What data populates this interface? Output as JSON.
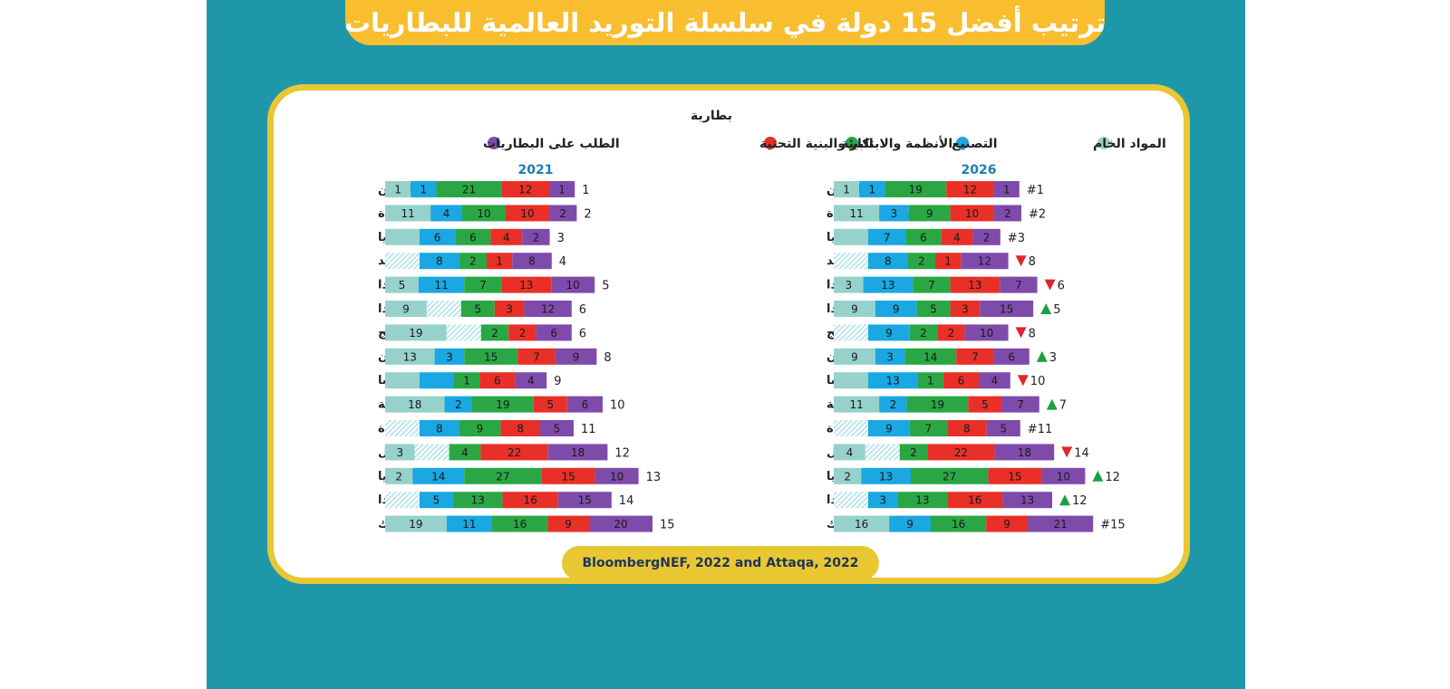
{
  "title": "ترتيب أفضل 15 دولة في سلسلة التوريد العالمية للبطاريات",
  "source": "BloombergNEF, 2022 and Attaqa, 2022",
  "colors": {
    "raw_materials": "#96d2cb",
    "manufacturing": "#1aa7e2",
    "environment": "#2aa744",
    "regulation": "#e83028",
    "demand": "#7e4bab",
    "hatch": "#bfe5ee",
    "up_arrow": "#1e9e43",
    "down_arrow": "#e0262a",
    "year_label": "#1a7fb1",
    "board": "#1e98a8",
    "banner": "#f8be2f",
    "frame": "#e9c733"
  },
  "chart_data": {
    "type": "bar",
    "stacked": true,
    "orientation": "horizontal",
    "legend_title": "بطارية",
    "legend_position": "top",
    "series": [
      {
        "name": "المواد الخام",
        "color_key": "raw_materials"
      },
      {
        "name": "التصنيع",
        "color_key": "manufacturing"
      },
      {
        "name": "البيئة",
        "color_key": "environment"
      },
      {
        "name": "الأنظمة والابتكار والبنية التحتية",
        "color_key": "regulation"
      },
      {
        "name": "الطلب على البطاريات",
        "color_key": "demand"
      }
    ],
    "charts": [
      {
        "year": "2026",
        "rows": [
          {
            "country": "الصين",
            "rank": "#1",
            "change": "",
            "segments": [
              {
                "s": 0,
                "v": "1"
              },
              {
                "s": 1,
                "v": "1"
              },
              {
                "s": 2,
                "v": "19"
              },
              {
                "s": 3,
                "v": "12"
              },
              {
                "s": 4,
                "v": "1"
              }
            ]
          },
          {
            "country": "الولايات المتحدة",
            "rank": "#2",
            "change": "",
            "segments": [
              {
                "s": 0,
                "v": "11"
              },
              {
                "s": 1,
                "v": "3"
              },
              {
                "s": 2,
                "v": "9"
              },
              {
                "s": 3,
                "v": "10"
              },
              {
                "s": 4,
                "v": "2"
              }
            ]
          },
          {
            "country": "ألمانيا",
            "rank": "#3",
            "change": "",
            "segments": [
              {
                "s": 0,
                "v": ""
              },
              {
                "s": 1,
                "v": "7"
              },
              {
                "s": 2,
                "v": "6"
              },
              {
                "s": 3,
                "v": "4"
              },
              {
                "s": 4,
                "v": "2"
              }
            ]
          },
          {
            "country": "السويد",
            "rank": "8",
            "change": "down",
            "segments": [
              {
                "s": 0,
                "v": "",
                "hatch": true
              },
              {
                "s": 1,
                "v": "8"
              },
              {
                "s": 2,
                "v": "2"
              },
              {
                "s": 3,
                "v": "1"
              },
              {
                "s": 4,
                "v": "12"
              }
            ]
          },
          {
            "country": "كندا",
            "rank": "6",
            "change": "down",
            "segments": [
              {
                "s": 0,
                "v": "3"
              },
              {
                "s": 1,
                "v": "13"
              },
              {
                "s": 2,
                "v": "7"
              },
              {
                "s": 3,
                "v": "13"
              },
              {
                "s": 4,
                "v": "7"
              }
            ]
          },
          {
            "country": "فنلندا",
            "rank": "5",
            "change": "up",
            "segments": [
              {
                "s": 0,
                "v": "9"
              },
              {
                "s": 1,
                "v": "9"
              },
              {
                "s": 2,
                "v": "5"
              },
              {
                "s": 3,
                "v": "3"
              },
              {
                "s": 4,
                "v": "15"
              }
            ]
          },
          {
            "country": "النرويج",
            "rank": "8",
            "change": "down",
            "segments": [
              {
                "s": 0,
                "v": "",
                "hatch": true
              },
              {
                "s": 1,
                "v": "9"
              },
              {
                "s": 2,
                "v": "2"
              },
              {
                "s": 3,
                "v": "2"
              },
              {
                "s": 4,
                "v": "10"
              }
            ]
          },
          {
            "country": "اليابان",
            "rank": "3",
            "change": "up",
            "segments": [
              {
                "s": 0,
                "v": "9"
              },
              {
                "s": 1,
                "v": "3"
              },
              {
                "s": 2,
                "v": "14"
              },
              {
                "s": 3,
                "v": "7"
              },
              {
                "s": 4,
                "v": "6"
              }
            ]
          },
          {
            "country": "فرنسا",
            "rank": "10",
            "change": "down",
            "segments": [
              {
                "s": 0,
                "v": ""
              },
              {
                "s": 1,
                "v": "13"
              },
              {
                "s": 2,
                "v": "1"
              },
              {
                "s": 3,
                "v": "6"
              },
              {
                "s": 4,
                "v": "4"
              }
            ]
          },
          {
            "country": "كوريا الجنوبية",
            "rank": "7",
            "change": "up",
            "segments": [
              {
                "s": 0,
                "v": "11"
              },
              {
                "s": 1,
                "v": "2"
              },
              {
                "s": 2,
                "v": "19"
              },
              {
                "s": 3,
                "v": "5"
              },
              {
                "s": 4,
                "v": "7"
              }
            ]
          },
          {
            "country": "المملكة المتحدة",
            "rank": "#11",
            "change": "",
            "segments": [
              {
                "s": 0,
                "v": "",
                "hatch": true
              },
              {
                "s": 1,
                "v": "9"
              },
              {
                "s": 2,
                "v": "7"
              },
              {
                "s": 3,
                "v": "8"
              },
              {
                "s": 4,
                "v": "5"
              }
            ]
          },
          {
            "country": "البرازيل",
            "rank": "14",
            "change": "down",
            "segments": [
              {
                "s": 0,
                "v": "4"
              },
              {
                "s": 1,
                "v": "",
                "hatch": true
              },
              {
                "s": 2,
                "v": "2"
              },
              {
                "s": 3,
                "v": "22"
              },
              {
                "s": 4,
                "v": "18"
              }
            ]
          },
          {
            "country": "أستراليا",
            "rank": "12",
            "change": "up",
            "segments": [
              {
                "s": 0,
                "v": "2"
              },
              {
                "s": 1,
                "v": "13"
              },
              {
                "s": 2,
                "v": "27"
              },
              {
                "s": 3,
                "v": "15"
              },
              {
                "s": 4,
                "v": "10"
              }
            ]
          },
          {
            "country": "بولندا",
            "rank": "12",
            "change": "up",
            "segments": [
              {
                "s": 0,
                "v": "",
                "hatch": true
              },
              {
                "s": 1,
                "v": "3"
              },
              {
                "s": 2,
                "v": "13"
              },
              {
                "s": 3,
                "v": "16"
              },
              {
                "s": 4,
                "v": "13"
              }
            ]
          },
          {
            "country": "التشيك",
            "rank": "#15",
            "change": "",
            "segments": [
              {
                "s": 0,
                "v": "16"
              },
              {
                "s": 1,
                "v": "9"
              },
              {
                "s": 2,
                "v": "16"
              },
              {
                "s": 3,
                "v": "9"
              },
              {
                "s": 4,
                "v": "21"
              }
            ]
          }
        ]
      },
      {
        "year": "2021",
        "rows": [
          {
            "country": "الصين",
            "rank": "1",
            "change": "",
            "segments": [
              {
                "s": 0,
                "v": "1"
              },
              {
                "s": 1,
                "v": "1"
              },
              {
                "s": 2,
                "v": "21"
              },
              {
                "s": 3,
                "v": "12"
              },
              {
                "s": 4,
                "v": "1"
              }
            ]
          },
          {
            "country": "الولايات المتحدة",
            "rank": "2",
            "change": "",
            "segments": [
              {
                "s": 0,
                "v": "11"
              },
              {
                "s": 1,
                "v": "4"
              },
              {
                "s": 2,
                "v": "10"
              },
              {
                "s": 3,
                "v": "10"
              },
              {
                "s": 4,
                "v": "2"
              }
            ]
          },
          {
            "country": "ألمانيا",
            "rank": "3",
            "change": "",
            "segments": [
              {
                "s": 0,
                "v": ""
              },
              {
                "s": 1,
                "v": "6"
              },
              {
                "s": 2,
                "v": "6"
              },
              {
                "s": 3,
                "v": "4"
              },
              {
                "s": 4,
                "v": "2"
              }
            ]
          },
          {
            "country": "السويد",
            "rank": "4",
            "change": "",
            "segments": [
              {
                "s": 0,
                "v": "",
                "hatch": true
              },
              {
                "s": 1,
                "v": "8"
              },
              {
                "s": 2,
                "v": "2"
              },
              {
                "s": 3,
                "v": "1"
              },
              {
                "s": 4,
                "v": "8"
              }
            ]
          },
          {
            "country": "كندا",
            "rank": "5",
            "change": "",
            "segments": [
              {
                "s": 0,
                "v": "5"
              },
              {
                "s": 1,
                "v": "11"
              },
              {
                "s": 2,
                "v": "7"
              },
              {
                "s": 3,
                "v": "13"
              },
              {
                "s": 4,
                "v": "10"
              }
            ]
          },
          {
            "country": "فنلندا",
            "rank": "6",
            "change": "",
            "segments": [
              {
                "s": 0,
                "v": "9"
              },
              {
                "s": 1,
                "v": "",
                "hatch": true
              },
              {
                "s": 2,
                "v": "5"
              },
              {
                "s": 3,
                "v": "3"
              },
              {
                "s": 4,
                "v": "12"
              }
            ]
          },
          {
            "country": "النرويج",
            "rank": "6",
            "change": "",
            "segments": [
              {
                "s": 0,
                "v": "19"
              },
              {
                "s": 1,
                "v": "",
                "hatch": true
              },
              {
                "s": 2,
                "v": "2"
              },
              {
                "s": 3,
                "v": "2"
              },
              {
                "s": 4,
                "v": "6"
              }
            ]
          },
          {
            "country": "اليابان",
            "rank": "8",
            "change": "",
            "segments": [
              {
                "s": 0,
                "v": "13"
              },
              {
                "s": 1,
                "v": "3"
              },
              {
                "s": 2,
                "v": "15"
              },
              {
                "s": 3,
                "v": "7"
              },
              {
                "s": 4,
                "v": "9"
              }
            ]
          },
          {
            "country": "فرنسا",
            "rank": "9",
            "change": "",
            "segments": [
              {
                "s": 0,
                "v": ""
              },
              {
                "s": 1,
                "v": ""
              },
              {
                "s": 2,
                "v": "1"
              },
              {
                "s": 3,
                "v": "6"
              },
              {
                "s": 4,
                "v": "4"
              }
            ]
          },
          {
            "country": "كوريا الجنوبية",
            "rank": "10",
            "change": "",
            "segments": [
              {
                "s": 0,
                "v": "18"
              },
              {
                "s": 1,
                "v": "2"
              },
              {
                "s": 2,
                "v": "19"
              },
              {
                "s": 3,
                "v": "5"
              },
              {
                "s": 4,
                "v": "6"
              }
            ]
          },
          {
            "country": "المملكة المتحدة",
            "rank": "11",
            "change": "",
            "segments": [
              {
                "s": 0,
                "v": "",
                "hatch": true
              },
              {
                "s": 1,
                "v": "8"
              },
              {
                "s": 2,
                "v": "9"
              },
              {
                "s": 3,
                "v": "8"
              },
              {
                "s": 4,
                "v": "5"
              }
            ]
          },
          {
            "country": "البرازيل",
            "rank": "12",
            "change": "",
            "segments": [
              {
                "s": 0,
                "v": "3"
              },
              {
                "s": 1,
                "v": "",
                "hatch": true
              },
              {
                "s": 2,
                "v": "4"
              },
              {
                "s": 3,
                "v": "22"
              },
              {
                "s": 4,
                "v": "18"
              }
            ]
          },
          {
            "country": "أستراليا",
            "rank": "13",
            "change": "",
            "segments": [
              {
                "s": 0,
                "v": "2"
              },
              {
                "s": 1,
                "v": "14"
              },
              {
                "s": 2,
                "v": "27"
              },
              {
                "s": 3,
                "v": "15"
              },
              {
                "s": 4,
                "v": "10"
              }
            ]
          },
          {
            "country": "بولندا",
            "rank": "14",
            "change": "",
            "segments": [
              {
                "s": 0,
                "v": "",
                "hatch": true
              },
              {
                "s": 1,
                "v": "5"
              },
              {
                "s": 2,
                "v": "13"
              },
              {
                "s": 3,
                "v": "16"
              },
              {
                "s": 4,
                "v": "15"
              }
            ]
          },
          {
            "country": "التشيك",
            "rank": "15",
            "change": "",
            "segments": [
              {
                "s": 0,
                "v": "19"
              },
              {
                "s": 1,
                "v": "11"
              },
              {
                "s": 2,
                "v": "16"
              },
              {
                "s": 3,
                "v": "9"
              },
              {
                "s": 4,
                "v": "20"
              }
            ]
          }
        ]
      }
    ]
  }
}
